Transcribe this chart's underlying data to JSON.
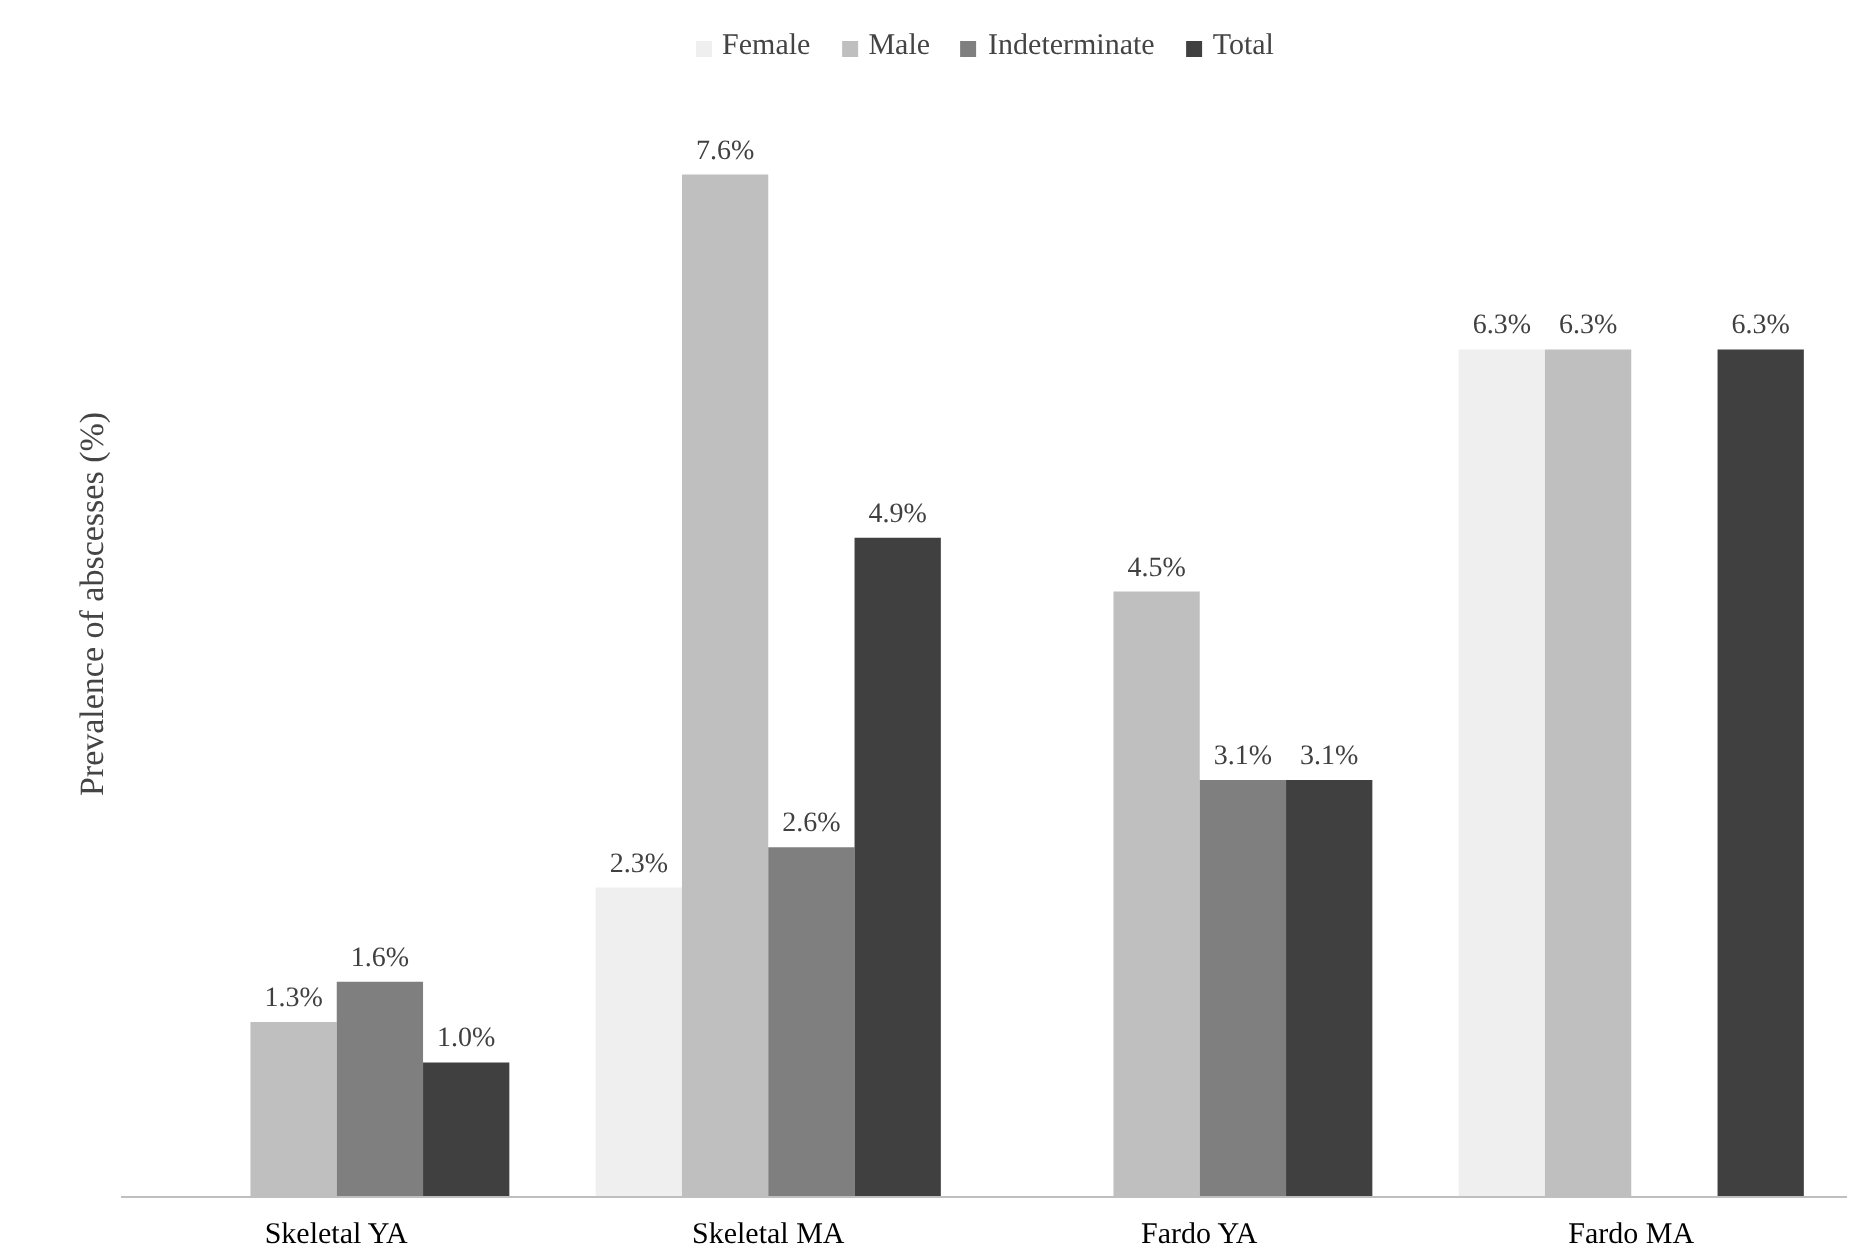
{
  "chart_data": {
    "type": "bar",
    "ylabel": "Prevalence of abscesses (%)",
    "categories": [
      "Skeletal YA",
      "Skeletal MA",
      "Fardo YA",
      "Fardo MA"
    ],
    "series": [
      {
        "name": "Female",
        "color": "#efefef",
        "values": [
          null,
          2.3,
          null,
          6.3
        ],
        "value_labels": [
          null,
          "2.3%",
          null,
          "6.3%"
        ]
      },
      {
        "name": "Male",
        "color": "#bfbfbf",
        "values": [
          1.3,
          7.6,
          4.5,
          6.3
        ],
        "value_labels": [
          "1.3%",
          "7.6%",
          "4.5%",
          "6.3%"
        ]
      },
      {
        "name": "Indeterminate",
        "color": "#7f7f7f",
        "values": [
          1.6,
          2.6,
          3.1,
          null
        ],
        "value_labels": [
          "1.6%",
          "2.6%",
          "3.1%",
          null
        ]
      },
      {
        "name": "Total",
        "color": "#404040",
        "values": [
          1.0,
          4.9,
          3.1,
          6.3
        ],
        "value_labels": [
          "1.0%",
          "4.9%",
          "3.1%",
          "6.3%"
        ]
      }
    ],
    "legend": "top",
    "grid": false,
    "tick_labels": "x"
  }
}
